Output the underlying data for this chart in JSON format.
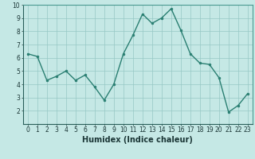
{
  "x": [
    0,
    1,
    2,
    3,
    4,
    5,
    6,
    7,
    8,
    9,
    10,
    11,
    12,
    13,
    14,
    15,
    16,
    17,
    18,
    19,
    20,
    21,
    22,
    23
  ],
  "y": [
    6.3,
    6.1,
    4.3,
    4.6,
    5.0,
    4.3,
    4.7,
    3.8,
    2.8,
    4.0,
    6.3,
    7.7,
    9.3,
    8.6,
    9.0,
    9.7,
    8.1,
    6.3,
    5.6,
    5.5,
    4.5,
    1.9,
    2.4,
    3.3
  ],
  "line_color": "#2a7f72",
  "marker_color": "#2a7f72",
  "bg_color": "#c5e8e5",
  "grid_color": "#96c8c4",
  "xlabel": "Humidex (Indice chaleur)",
  "xlim": [
    -0.5,
    23.5
  ],
  "ylim": [
    1,
    10
  ],
  "yticks": [
    2,
    3,
    4,
    5,
    6,
    7,
    8,
    9,
    10
  ],
  "xticks": [
    0,
    1,
    2,
    3,
    4,
    5,
    6,
    7,
    8,
    9,
    10,
    11,
    12,
    13,
    14,
    15,
    16,
    17,
    18,
    19,
    20,
    21,
    22,
    23
  ],
  "marker_size": 2.0,
  "line_width": 1.0,
  "xlabel_fontsize": 7.0,
  "tick_fontsize": 5.5,
  "axis_bar_color": "#4a9a90"
}
